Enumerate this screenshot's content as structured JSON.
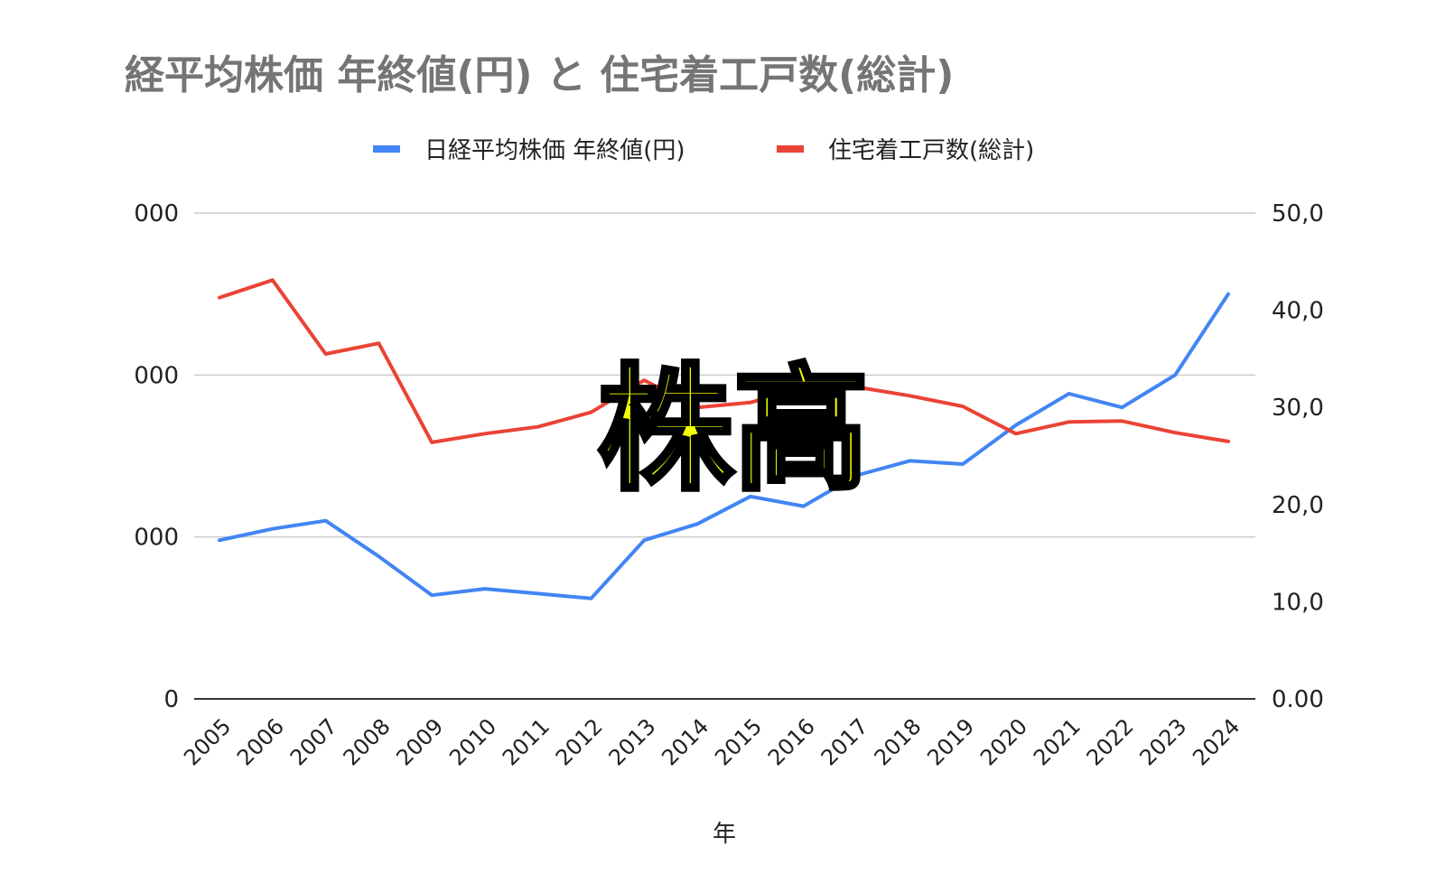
{
  "chart_data": {
    "type": "line",
    "title": "経平均株価 年終値(円) と 住宅着工戸数(総計)",
    "xlabel": "年",
    "categories": [
      "2005",
      "2006",
      "2007",
      "2008",
      "2009",
      "2010",
      "2011",
      "2012",
      "2013",
      "2014",
      "2015",
      "2016",
      "2017",
      "2018",
      "2019",
      "2020",
      "2021",
      "2022",
      "2023",
      "2024"
    ],
    "left_axis": {
      "ylim": [
        0,
        60000
      ],
      "tick_values": [
        0,
        20000,
        40000,
        60000
      ],
      "tick_labels": [
        "0",
        "000",
        "000",
        "000"
      ]
    },
    "right_axis": {
      "ylim": [
        0,
        50
      ],
      "tick_values": [
        0,
        10,
        20,
        30,
        40,
        50
      ],
      "tick_labels": [
        "0.00",
        "10,0",
        "20,0",
        "30,0",
        "40,0",
        "50,0"
      ]
    },
    "series": [
      {
        "name": "日経平均株価 年終値(円)",
        "color": "#4285f4",
        "axis": "left",
        "values": [
          19600,
          21000,
          22000,
          17600,
          12800,
          13600,
          13000,
          12400,
          19600,
          21600,
          25000,
          23800,
          27600,
          29400,
          29000,
          33800,
          37700,
          36000,
          40000,
          50000
        ]
      },
      {
        "name": "住宅着工戸数(総計)",
        "color": "#ea4335",
        "axis": "right",
        "values": [
          41.3,
          43.1,
          35.5,
          36.6,
          26.4,
          27.3,
          28.0,
          29.5,
          32.8,
          30.0,
          30.5,
          32.1,
          32.1,
          31.2,
          30.1,
          27.3,
          28.5,
          28.6,
          27.4,
          26.5
        ]
      }
    ],
    "legend": "top",
    "grid": true
  },
  "overlay_text": "株高"
}
